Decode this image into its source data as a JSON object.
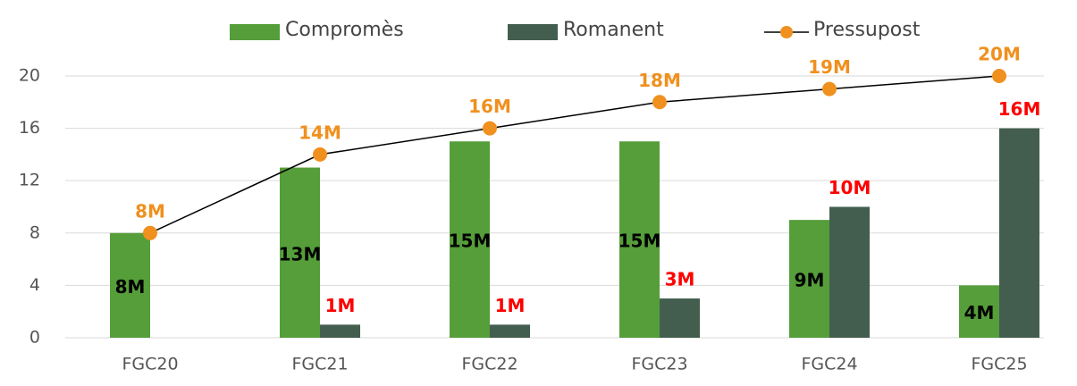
{
  "chart_data": {
    "type": "bar",
    "categories": [
      "FGC20",
      "FGC21",
      "FGC22",
      "FGC23",
      "FGC24",
      "FGC25"
    ],
    "series": [
      {
        "name": "Compromès",
        "type": "bar",
        "color": "#559e3a",
        "label_color": "#000000",
        "values": [
          8,
          13,
          15,
          15,
          9,
          4
        ],
        "value_labels": [
          "8M",
          "13M",
          "15M",
          "15M",
          "9M",
          "4M"
        ]
      },
      {
        "name": "Romanent",
        "type": "bar",
        "color": "#435e4f",
        "label_color": "#ff0000",
        "values": [
          null,
          1,
          1,
          3,
          10,
          16
        ],
        "value_labels": [
          null,
          "1M",
          "1M",
          "3M",
          "10M",
          "16M"
        ]
      },
      {
        "name": "Pressupost",
        "type": "line",
        "color": "#000000",
        "marker_color": "#f0901e",
        "label_color": "#f0901e",
        "values": [
          8,
          14,
          16,
          18,
          19,
          20
        ],
        "value_labels": [
          "8M",
          "14M",
          "16M",
          "18M",
          "19M",
          "20M"
        ]
      }
    ],
    "ylim": [
      0,
      21.5
    ],
    "yticks": [
      0,
      4,
      8,
      12,
      16,
      20
    ],
    "grid": true,
    "legend": "top"
  }
}
